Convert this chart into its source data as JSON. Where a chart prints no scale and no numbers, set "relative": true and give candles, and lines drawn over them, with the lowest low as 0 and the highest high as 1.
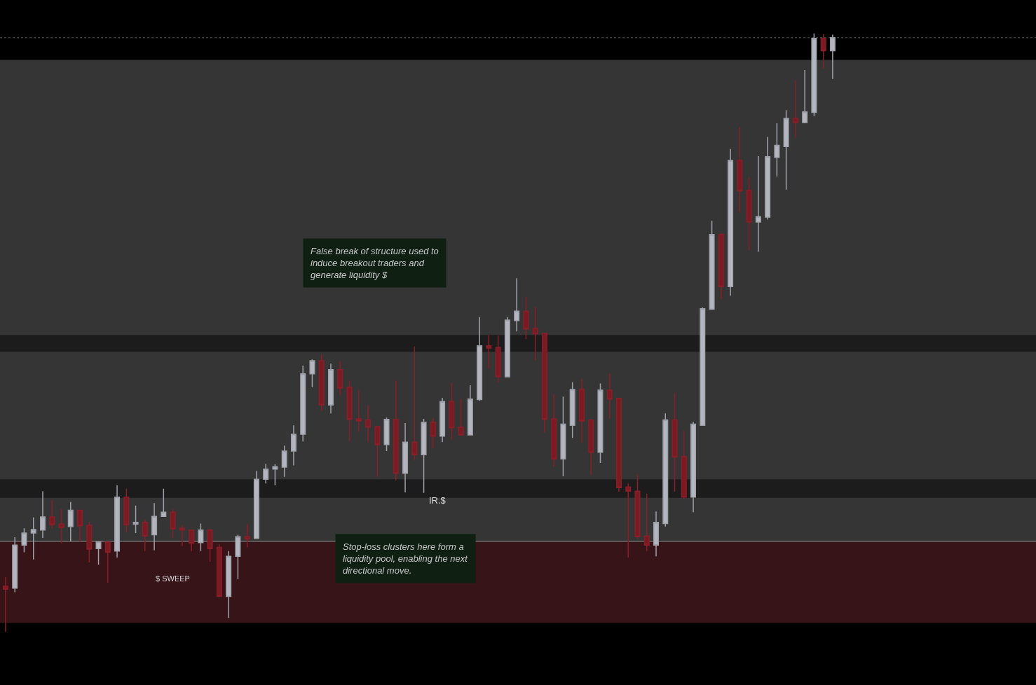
{
  "chart_data": {
    "type": "candlestick",
    "relative": true,
    "categories": [
      null,
      null,
      null,
      null,
      null,
      null,
      null,
      null,
      null,
      null,
      null,
      null,
      null,
      null,
      null,
      null,
      null,
      null,
      null,
      null,
      null,
      null,
      null,
      null,
      null,
      null,
      null,
      null,
      null,
      null,
      null,
      null,
      null,
      null,
      null,
      null,
      null,
      null,
      null,
      null,
      null,
      null,
      null,
      null,
      null,
      null,
      null,
      null,
      null,
      null,
      null,
      null,
      null,
      null,
      null,
      null,
      null,
      null,
      null,
      null,
      null,
      null,
      null,
      null,
      null,
      null,
      null,
      null,
      null,
      null,
      null,
      null,
      null,
      null,
      null,
      null,
      null,
      null,
      null,
      null,
      null,
      null,
      null,
      null,
      null,
      null,
      null,
      null,
      null,
      null
    ],
    "ohlc": [
      [
        0.076,
        0.091,
        0.0,
        0.071
      ],
      [
        0.073,
        0.158,
        0.066,
        0.145
      ],
      [
        0.145,
        0.173,
        0.133,
        0.165
      ],
      [
        0.165,
        0.191,
        0.121,
        0.171
      ],
      [
        0.17,
        0.235,
        0.157,
        0.192
      ],
      [
        0.192,
        0.22,
        0.173,
        0.179
      ],
      [
        0.18,
        0.205,
        0.148,
        0.174
      ],
      [
        0.176,
        0.217,
        0.151,
        0.203
      ],
      [
        0.203,
        0.203,
        0.151,
        0.177
      ],
      [
        0.178,
        0.184,
        0.116,
        0.138
      ],
      [
        0.139,
        0.15,
        0.112,
        0.15
      ],
      [
        0.15,
        0.15,
        0.082,
        0.133
      ],
      [
        0.135,
        0.245,
        0.124,
        0.225
      ],
      [
        0.225,
        0.239,
        0.166,
        0.179
      ],
      [
        0.18,
        0.211,
        0.165,
        0.183
      ],
      [
        0.183,
        0.187,
        0.135,
        0.16
      ],
      [
        0.162,
        0.215,
        0.136,
        0.193
      ],
      [
        0.193,
        0.239,
        0.193,
        0.2
      ],
      [
        0.2,
        0.205,
        0.157,
        0.172
      ],
      [
        0.173,
        0.178,
        0.143,
        0.17
      ],
      [
        0.17,
        0.17,
        0.135,
        0.148
      ],
      [
        0.149,
        0.181,
        0.135,
        0.17
      ],
      [
        0.17,
        0.172,
        0.117,
        0.139
      ],
      [
        0.141,
        0.146,
        0.059,
        0.059
      ],
      [
        0.059,
        0.135,
        0.023,
        0.126
      ],
      [
        0.126,
        0.162,
        0.088,
        0.159
      ],
      [
        0.159,
        0.18,
        0.141,
        0.155
      ],
      [
        0.156,
        0.269,
        0.155,
        0.255
      ],
      [
        0.255,
        0.281,
        0.248,
        0.272
      ],
      [
        0.272,
        0.28,
        0.245,
        0.276
      ],
      [
        0.275,
        0.311,
        0.259,
        0.302
      ],
      [
        0.302,
        0.345,
        0.278,
        0.33
      ],
      [
        0.33,
        0.445,
        0.318,
        0.431
      ],
      [
        0.431,
        0.455,
        0.409,
        0.453
      ],
      [
        0.453,
        0.463,
        0.369,
        0.379
      ],
      [
        0.379,
        0.448,
        0.365,
        0.438
      ],
      [
        0.438,
        0.452,
        0.395,
        0.407
      ],
      [
        0.409,
        0.42,
        0.318,
        0.355
      ],
      [
        0.356,
        0.404,
        0.334,
        0.352
      ],
      [
        0.354,
        0.378,
        0.317,
        0.342
      ],
      [
        0.343,
        0.344,
        0.259,
        0.313
      ],
      [
        0.313,
        0.358,
        0.302,
        0.355
      ],
      [
        0.355,
        0.42,
        0.253,
        0.265
      ],
      [
        0.265,
        0.349,
        0.233,
        0.317
      ],
      [
        0.317,
        0.477,
        0.287,
        0.296
      ],
      [
        0.296,
        0.356,
        0.232,
        0.35
      ],
      [
        0.35,
        0.357,
        0.307,
        0.327
      ],
      [
        0.327,
        0.391,
        0.317,
        0.385
      ],
      [
        0.385,
        0.416,
        0.321,
        0.341
      ],
      [
        0.342,
        0.389,
        0.328,
        0.329
      ],
      [
        0.329,
        0.412,
        0.328,
        0.389
      ],
      [
        0.388,
        0.526,
        0.386,
        0.478
      ],
      [
        0.478,
        0.496,
        0.44,
        0.474
      ],
      [
        0.475,
        0.495,
        0.417,
        0.426
      ],
      [
        0.426,
        0.526,
        0.426,
        0.521
      ],
      [
        0.52,
        0.591,
        0.502,
        0.536
      ],
      [
        0.536,
        0.56,
        0.489,
        0.506
      ],
      [
        0.507,
        0.543,
        0.454,
        0.498
      ],
      [
        0.499,
        0.499,
        0.333,
        0.355
      ],
      [
        0.356,
        0.397,
        0.276,
        0.289
      ],
      [
        0.289,
        0.393,
        0.26,
        0.347
      ],
      [
        0.345,
        0.417,
        0.324,
        0.405
      ],
      [
        0.405,
        0.423,
        0.316,
        0.352
      ],
      [
        0.354,
        0.354,
        0.262,
        0.3
      ],
      [
        0.3,
        0.415,
        0.282,
        0.404
      ],
      [
        0.404,
        0.432,
        0.356,
        0.389
      ],
      [
        0.39,
        0.39,
        0.234,
        0.241
      ],
      [
        0.242,
        0.248,
        0.124,
        0.235
      ],
      [
        0.235,
        0.263,
        0.155,
        0.159
      ],
      [
        0.16,
        0.231,
        0.135,
        0.145
      ],
      [
        0.145,
        0.201,
        0.126,
        0.183
      ],
      [
        0.181,
        0.365,
        0.176,
        0.354
      ],
      [
        0.354,
        0.399,
        0.234,
        0.292
      ],
      [
        0.293,
        0.336,
        0.222,
        0.225
      ],
      [
        0.225,
        0.351,
        0.2,
        0.347
      ],
      [
        0.345,
        0.542,
        0.345,
        0.54
      ],
      [
        0.539,
        0.687,
        0.539,
        0.664
      ],
      [
        0.664,
        0.666,
        0.556,
        0.577
      ],
      [
        0.577,
        0.807,
        0.562,
        0.788
      ],
      [
        0.788,
        0.844,
        0.701,
        0.737
      ],
      [
        0.738,
        0.76,
        0.638,
        0.685
      ],
      [
        0.685,
        0.795,
        0.635,
        0.694
      ],
      [
        0.693,
        0.827,
        0.689,
        0.794
      ],
      [
        0.793,
        0.85,
        0.761,
        0.813
      ],
      [
        0.811,
        0.872,
        0.739,
        0.858
      ],
      [
        0.858,
        0.922,
        0.826,
        0.851
      ],
      [
        0.851,
        0.939,
        0.85,
        0.869
      ],
      [
        0.868,
        1.0,
        0.862,
        0.992
      ],
      [
        0.992,
        0.999,
        0.941,
        0.971
      ],
      [
        0.971,
        0.998,
        0.924,
        0.993
      ]
    ],
    "bands": [
      {
        "axis": "y",
        "from": 0.151,
        "to": 0.956,
        "color": "#353535"
      },
      {
        "axis": "y",
        "from": 0.015,
        "to": 0.151,
        "color": "#361418"
      },
      {
        "axis": "y",
        "from": 0.224,
        "to": 0.255,
        "color": "#1c1c1c"
      },
      {
        "axis": "y",
        "from": 0.468,
        "to": 0.496,
        "color": "#1c1c1c"
      }
    ],
    "ref_lines": [
      {
        "axis": "y",
        "value": 0.151,
        "color": "#8a8a8a",
        "line_style": "solid"
      },
      {
        "axis": "y",
        "value": 0.993,
        "color": "#555555",
        "line_style": "dotted"
      }
    ],
    "annotations": [
      "False break of structure used to induce breakout traders and generate liquidity $",
      "$ SWEEP",
      "IR.$",
      "Stop-loss clusters here form a liquidity pool, enabling the next directional move."
    ]
  }
}
